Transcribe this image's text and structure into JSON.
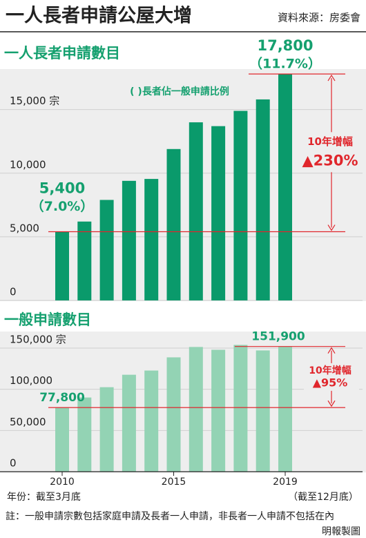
{
  "header": {
    "title": "一人長者申請公屋大增",
    "source": "資料來源：房委會"
  },
  "chart_data": [
    {
      "type": "bar",
      "title": "一人長者申請數目",
      "legend_note": "( )長者佔一般申請比例",
      "categories": [
        "2010",
        null,
        null,
        null,
        null,
        "2015",
        null,
        null,
        null,
        null,
        "2019"
      ],
      "values": [
        5400,
        6200,
        7900,
        9400,
        9550,
        11900,
        14000,
        13700,
        14900,
        15800,
        17800
      ],
      "value_labels": [
        "5,400",
        null,
        null,
        null,
        null,
        null,
        null,
        null,
        null,
        null,
        "17,800"
      ],
      "share_labels": [
        "（7.0%）",
        null,
        null,
        null,
        null,
        null,
        null,
        null,
        null,
        null,
        "（11.7%）"
      ],
      "color": "#0a9a6b",
      "ylim": [
        0,
        19000
      ],
      "yticks": [
        0,
        {
          "value": 5000,
          "label": "5,000"
        },
        {
          "value": 10000,
          "label": "10,000"
        },
        {
          "value": 15000,
          "label": "15,000 宗"
        }
      ],
      "increase_label": "10年增幅",
      "increase_value": "▲230%",
      "grid": true
    },
    {
      "type": "bar",
      "title": "一般申請數目",
      "categories": [
        "2010",
        null,
        null,
        null,
        null,
        "2015",
        null,
        null,
        null,
        null,
        "2019"
      ],
      "values": [
        77800,
        90000,
        102500,
        117600,
        122700,
        138700,
        151300,
        147900,
        153800,
        147100,
        151900
      ],
      "value_labels": [
        "77,800",
        null,
        null,
        null,
        null,
        null,
        null,
        null,
        null,
        null,
        "151,900"
      ],
      "color": "#93d3b4",
      "ylim": [
        0,
        160000
      ],
      "yticks": [
        0,
        {
          "value": 50000,
          "label": "50,000"
        },
        {
          "value": 100000,
          "label": "100,000"
        },
        {
          "value": 150000,
          "label": "150,000 宗"
        }
      ],
      "increase_label": "10年增幅",
      "increase_value": "▲95%",
      "grid": true
    }
  ],
  "footer": {
    "year_note": "年份：截至3月底",
    "last_note": "（截至12月底）",
    "note": "註：一般申請宗數包括家庭申請及長者一人申請，非長者一人申請不包括在內",
    "credit": "明報製圖"
  }
}
